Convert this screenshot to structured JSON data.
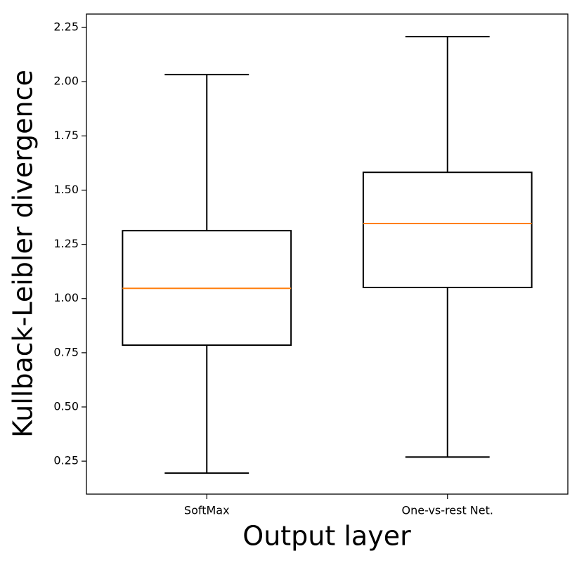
{
  "chart_data": {
    "type": "box",
    "x_label": "Output layer",
    "y_label": "Kullback-Leibler divergence",
    "categories": [
      "SoftMax",
      "One-vs-rest Net."
    ],
    "boxes": [
      {
        "whislo": 0.195,
        "q1": 0.785,
        "med": 1.047,
        "q3": 1.313,
        "whishi": 2.033
      },
      {
        "whislo": 0.269,
        "q1": 1.051,
        "med": 1.346,
        "q3": 1.582,
        "whishi": 2.208
      }
    ],
    "box_color": "#000000",
    "median_color": "#ff7f0e",
    "ylim": [
      0.098,
      2.312
    ],
    "yticks": [
      0.25,
      {
        "value": 0.5,
        "label": "0.50"
      },
      0.75,
      {
        "value": 1.0,
        "label": "1.00"
      },
      1.25,
      {
        "value": 1.5,
        "label": "1.50"
      },
      1.75,
      {
        "value": 2.0,
        "label": "2.00"
      },
      2.25
    ],
    "grid": false
  }
}
